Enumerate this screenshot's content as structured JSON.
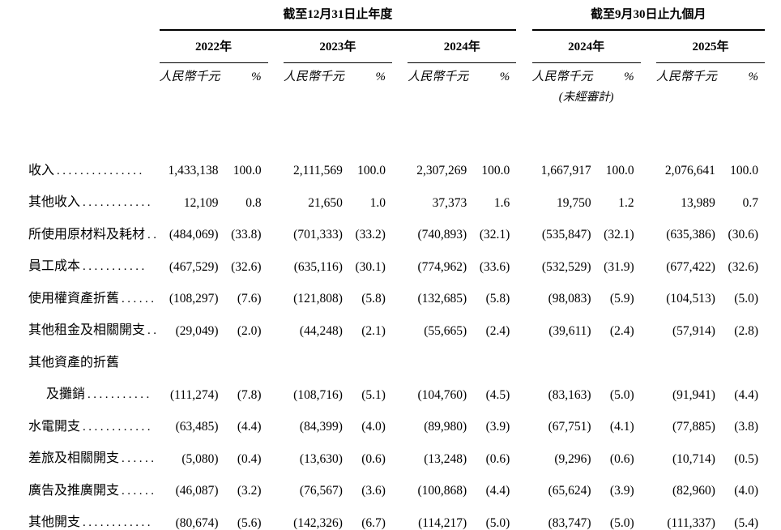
{
  "table": {
    "period_groups": [
      {
        "label": "截至12月31日止年度",
        "years": [
          "2022年",
          "2023年",
          "2024年"
        ]
      },
      {
        "label": "截至9月30日止九個月",
        "years": [
          "2024年",
          "2025年"
        ],
        "note_under_year_index": 0
      }
    ],
    "unaudited_note": "(未經審計)",
    "subheader": {
      "amount": "人民幣千元",
      "percent": "%"
    },
    "rows": [
      {
        "label": "收入",
        "leader": "...............",
        "values": [
          "1,433,138",
          "100.0",
          "2,111,569",
          "100.0",
          "2,307,269",
          "100.0",
          "1,667,917",
          "100.0",
          "2,076,641",
          "100.0"
        ]
      },
      {
        "label": "其他收入",
        "leader": "............",
        "values": [
          "12,109",
          "0.8",
          "21,650",
          "1.0",
          "37,373",
          "1.6",
          "19,750",
          "1.2",
          "13,989",
          "0.7"
        ]
      },
      {
        "label": "所使用原材料及耗材",
        "leader": "..",
        "values": [
          "(484,069)",
          "(33.8)",
          "(701,333)",
          "(33.2)",
          "(740,893)",
          "(32.1)",
          "(535,847)",
          "(32.1)",
          "(635,386)",
          "(30.6)"
        ]
      },
      {
        "label": "員工成本",
        "leader": "...........",
        "values": [
          "(467,529)",
          "(32.6)",
          "(635,116)",
          "(30.1)",
          "(774,962)",
          "(33.6)",
          "(532,529)",
          "(31.9)",
          "(677,422)",
          "(32.6)"
        ]
      },
      {
        "label": "使用權資產折舊",
        "leader": "......",
        "values": [
          "(108,297)",
          "(7.6)",
          "(121,808)",
          "(5.8)",
          "(132,685)",
          "(5.8)",
          "(98,083)",
          "(5.9)",
          "(104,513)",
          "(5.0)"
        ]
      },
      {
        "label": "其他租金及相關開支",
        "leader": "..",
        "values": [
          "(29,049)",
          "(2.0)",
          "(44,248)",
          "(2.1)",
          "(55,665)",
          "(2.4)",
          "(39,611)",
          "(2.4)",
          "(57,914)",
          "(2.8)"
        ]
      },
      {
        "label": "其他資產的折舊",
        "leader": "",
        "values": [
          "",
          "",
          "",
          "",
          "",
          "",
          "",
          "",
          "",
          ""
        ]
      },
      {
        "label": "及攤銷",
        "indent": true,
        "leader": "...........",
        "values": [
          "(111,274)",
          "(7.8)",
          "(108,716)",
          "(5.1)",
          "(104,760)",
          "(4.5)",
          "(83,163)",
          "(5.0)",
          "(91,941)",
          "(4.4)"
        ]
      },
      {
        "label": "水電開支",
        "leader": "............",
        "values": [
          "(63,485)",
          "(4.4)",
          "(84,399)",
          "(4.0)",
          "(89,980)",
          "(3.9)",
          "(67,751)",
          "(4.1)",
          "(77,885)",
          "(3.8)"
        ]
      },
      {
        "label": "差旅及相關開支",
        "leader": "......",
        "values": [
          "(5,080)",
          "(0.4)",
          "(13,630)",
          "(0.6)",
          "(13,248)",
          "(0.6)",
          "(9,296)",
          "(0.6)",
          "(10,714)",
          "(0.5)"
        ]
      },
      {
        "label": "廣告及推廣開支",
        "leader": "......",
        "values": [
          "(46,087)",
          "(3.2)",
          "(76,567)",
          "(3.6)",
          "(100,868)",
          "(4.4)",
          "(65,624)",
          "(3.9)",
          "(82,960)",
          "(4.0)"
        ]
      },
      {
        "label": "其他開支",
        "leader": "............",
        "values": [
          "(80,674)",
          "(5.6)",
          "(142,326)",
          "(6.7)",
          "(114,217)",
          "(5.0)",
          "(83,747)",
          "(5.0)",
          "(111,337)",
          "(5.4)"
        ]
      }
    ]
  }
}
